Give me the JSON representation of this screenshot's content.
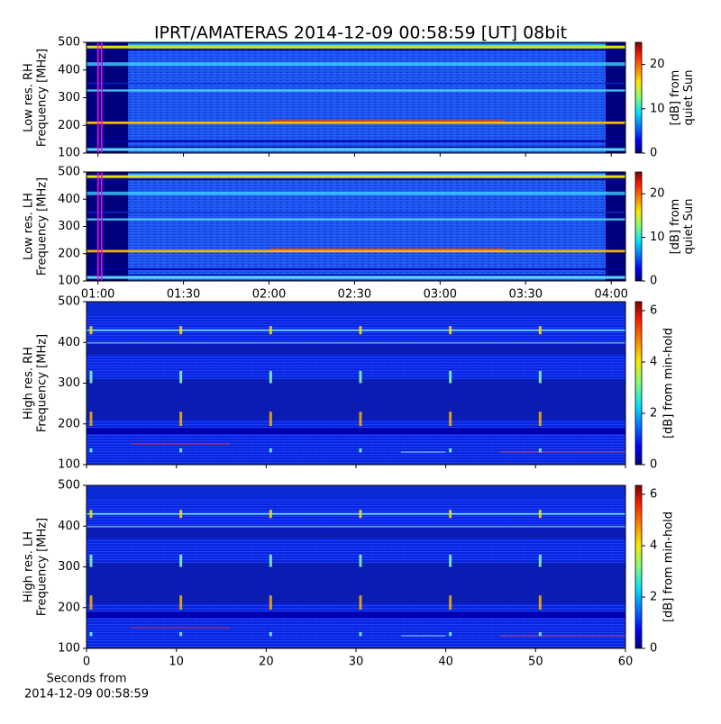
{
  "chart_data": [
    {
      "type": "spectrogram",
      "title": "IPRT/AMATERAS 2014-12-09 00:58:59 [UT]   08bit",
      "ylabel": [
        "Low res. RH",
        "Frequency [MHz]"
      ],
      "ylim": [
        100,
        500
      ],
      "yticks": [
        100,
        200,
        300,
        400,
        500
      ],
      "xlim": [
        56,
        245
      ],
      "colorbar_label": [
        "[dB] from",
        "quiet Sun"
      ],
      "clim": [
        0,
        25
      ],
      "cticks": [
        0,
        10,
        20
      ]
    },
    {
      "type": "spectrogram",
      "ylabel": [
        "Low res. LH",
        "Frequency [MHz]"
      ],
      "ylim": [
        100,
        500
      ],
      "yticks": [
        100,
        200,
        300,
        400,
        500
      ],
      "xlim": [
        56,
        245
      ],
      "xticks": [
        {
          "value": 60,
          "label": "01:00"
        },
        {
          "value": 90,
          "label": "01:30"
        },
        {
          "value": 120,
          "label": "02:00"
        },
        {
          "value": 150,
          "label": "02:30"
        },
        {
          "value": 180,
          "label": "03:00"
        },
        {
          "value": 210,
          "label": "03:30"
        },
        {
          "value": 240,
          "label": "04:00"
        }
      ],
      "colorbar_label": [
        "[dB] from",
        "quiet Sun"
      ],
      "clim": [
        0,
        25
      ],
      "cticks": [
        0,
        10,
        20
      ]
    },
    {
      "type": "spectrogram",
      "ylabel": [
        "High res. RH",
        "Frequency [MHz]"
      ],
      "ylim": [
        100,
        500
      ],
      "yticks": [
        100,
        200,
        300,
        400,
        500
      ],
      "xlim": [
        0,
        60
      ],
      "colorbar_label": [
        "[dB] from min-hold"
      ],
      "clim": [
        0,
        6.35
      ],
      "cticks": [
        0,
        2,
        4,
        6
      ]
    },
    {
      "type": "spectrogram",
      "ylabel": [
        "High res. LH",
        "Frequency [MHz]"
      ],
      "ylim": [
        100,
        500
      ],
      "yticks": [
        100,
        200,
        300,
        400,
        500
      ],
      "xlim": [
        0,
        60
      ],
      "xticks": [
        0,
        10,
        20,
        30,
        40,
        50,
        60
      ],
      "xlabel": [
        "Seconds from",
        "2014-12-09 00:58:59"
      ],
      "colorbar_label": [
        "[dB] from min-hold"
      ],
      "clim": [
        0,
        6.35
      ],
      "cticks": [
        0,
        2,
        4,
        6
      ]
    }
  ]
}
